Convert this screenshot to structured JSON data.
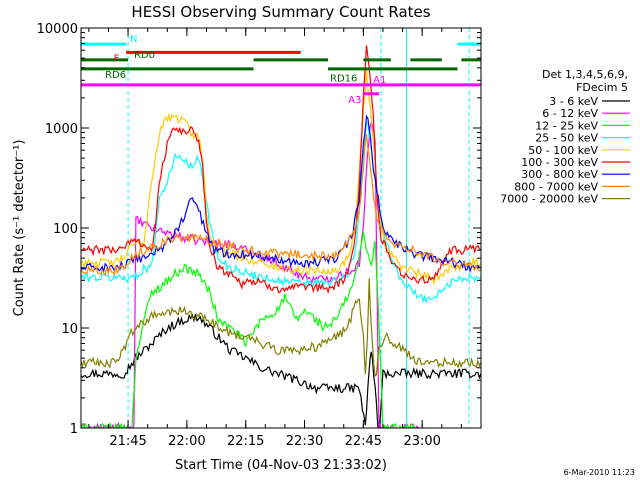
{
  "chart_data": {
    "type": "line",
    "title": "HESSI Observing Summary Count Rates",
    "xlabel": "Start Time (04-Nov-03 21:33:02)",
    "ylabel": "Count Rate (s⁻¹ detector⁻¹)",
    "x_unit": "minutes after 21:33:02",
    "xlim": [
      0,
      102
    ],
    "ylim": [
      1,
      10000
    ],
    "y_scale": "log",
    "x_ticks": [
      {
        "x": 12,
        "label": "21:45"
      },
      {
        "x": 27,
        "label": "22:00"
      },
      {
        "x": 42,
        "label": "22:15"
      },
      {
        "x": 57,
        "label": "22:30"
      },
      {
        "x": 72,
        "label": "22:45"
      },
      {
        "x": 87,
        "label": "23:00"
      }
    ],
    "y_ticks": [
      {
        "y": 1,
        "label": "1"
      },
      {
        "y": 10,
        "label": "10"
      },
      {
        "y": 100,
        "label": "100"
      },
      {
        "y": 1000,
        "label": "1000"
      },
      {
        "y": 10000,
        "label": "10000"
      }
    ],
    "legend_placement": "right",
    "legend_header": [
      "Det 1,3,4,5,6,9,",
      "FDecim 5"
    ],
    "series": [
      {
        "name": "3 - 6 keV",
        "color": "#000000",
        "x": [
          0,
          3,
          7,
          8.5,
          11,
          14,
          18,
          22,
          26,
          30,
          34,
          38,
          42,
          46,
          50,
          55,
          60,
          65,
          69,
          71,
          72.5,
          73.5,
          74,
          75,
          76,
          77,
          81,
          83,
          86,
          92,
          95,
          100,
          102
        ],
        "y": [
          3.5,
          3.5,
          3.5,
          3.5,
          3.5,
          5,
          7,
          10,
          12,
          13,
          9,
          6,
          5,
          4,
          3.5,
          3,
          2.5,
          2.5,
          2.5,
          2.5,
          1,
          4,
          6,
          2.5,
          0.8,
          3.5,
          3.5,
          3.5,
          3.5,
          3.5,
          3.5,
          3.5,
          3.5
        ]
      },
      {
        "name": "6 - 12 keV",
        "color": "#ff00ff",
        "x": [
          0,
          8.5,
          11,
          12.5,
          13.5,
          14,
          18,
          22,
          26,
          30,
          34,
          38,
          42,
          46,
          50,
          55,
          60,
          65,
          69,
          71,
          72,
          73,
          74,
          75,
          76,
          77,
          79,
          81,
          83,
          86
        ],
        "y": [
          1,
          1,
          1,
          1,
          1,
          120,
          100,
          90,
          80,
          75,
          72,
          68,
          60,
          52,
          45,
          35,
          30,
          33,
          38,
          45,
          100,
          500,
          1200,
          800,
          1,
          1,
          1,
          1,
          1,
          1
        ]
      },
      {
        "name": "12 - 25 keV",
        "color": "#00ff00",
        "x": [
          0,
          8.5,
          11,
          13,
          14,
          16,
          18,
          22,
          26,
          30,
          33,
          35,
          38,
          41,
          42,
          46,
          50,
          52,
          55,
          57,
          60,
          62,
          65,
          69,
          71,
          72,
          73,
          74,
          75,
          76,
          77,
          79,
          81,
          84,
          87
        ],
        "y": [
          1,
          1,
          1,
          1,
          5,
          12,
          22,
          30,
          40,
          35,
          22,
          12,
          10,
          8,
          7,
          12,
          15,
          20,
          12,
          15,
          12,
          10,
          12,
          25,
          50,
          90,
          60,
          40,
          80,
          10,
          1,
          1,
          1,
          1,
          1
        ]
      },
      {
        "name": "25 - 50 keV",
        "color": "#00ffff",
        "x": [
          0,
          8.5,
          11,
          14,
          16,
          18,
          20,
          22,
          24,
          26,
          28,
          30,
          32,
          33,
          35,
          38,
          41,
          42,
          50,
          55,
          60,
          63,
          66,
          68,
          70,
          71,
          72,
          72.8,
          73.5,
          74.5,
          76,
          78,
          80,
          82,
          86,
          90,
          96,
          100,
          102
        ],
        "y": [
          32,
          32,
          32,
          32,
          40,
          40,
          200,
          300,
          500,
          500,
          400,
          500,
          200,
          100,
          50,
          40,
          38,
          35,
          30,
          28,
          28,
          28,
          30,
          35,
          60,
          150,
          600,
          1200,
          900,
          400,
          150,
          70,
          40,
          30,
          20,
          20,
          32,
          32,
          32
        ]
      },
      {
        "name": "50 - 100 keV",
        "color": "#ffcc00",
        "x": [
          0,
          8.5,
          11,
          12,
          14,
          16,
          18,
          20,
          22,
          24,
          26,
          28,
          30,
          31,
          32,
          33,
          35,
          38,
          41,
          42,
          46,
          50,
          55,
          60,
          63,
          66,
          68,
          70,
          71,
          72,
          72.8,
          73.5,
          74.5,
          75.5,
          76.5,
          78,
          80,
          82,
          86,
          90,
          94,
          100,
          102
        ],
        "y": [
          45,
          45,
          50,
          60,
          70,
          70,
          300,
          900,
          1300,
          1200,
          1300,
          900,
          800,
          500,
          150,
          80,
          60,
          55,
          50,
          50,
          45,
          40,
          38,
          38,
          38,
          40,
          50,
          100,
          400,
          1500,
          3500,
          2000,
          800,
          200,
          100,
          60,
          50,
          40,
          35,
          30,
          40,
          45,
          45
        ]
      },
      {
        "name": "100 - 300 keV",
        "color": "#ff0000",
        "x": [
          0,
          8.5,
          11,
          12,
          14,
          16,
          18,
          19,
          20,
          22,
          24,
          26,
          28,
          30,
          31,
          32,
          33,
          35,
          38,
          41,
          42,
          46,
          50,
          55,
          60,
          63,
          66,
          68,
          70,
          71,
          72,
          72.8,
          73.5,
          74.5,
          75.5,
          76.5,
          78,
          80,
          82,
          86,
          90,
          94,
          100,
          102
        ],
        "y": [
          60,
          60,
          65,
          70,
          75,
          70,
          60,
          100,
          300,
          700,
          1000,
          900,
          1000,
          700,
          400,
          120,
          60,
          40,
          35,
          28,
          30,
          28,
          25,
          25,
          25,
          25,
          28,
          35,
          80,
          300,
          2000,
          6500,
          4000,
          1500,
          200,
          80,
          60,
          40,
          35,
          30,
          30,
          60,
          60,
          60
        ]
      },
      {
        "name": "300 - 800 keV",
        "color": "#0000ff",
        "x": [
          0,
          8.5,
          11,
          14,
          18,
          22,
          26,
          28,
          30,
          32,
          34,
          38,
          42,
          46,
          50,
          55,
          60,
          65,
          69,
          71,
          72,
          72.8,
          73.5,
          75,
          77,
          80,
          85,
          90,
          95,
          100,
          102
        ],
        "y": [
          40,
          40,
          42,
          48,
          55,
          70,
          120,
          200,
          150,
          90,
          60,
          55,
          55,
          52,
          50,
          45,
          45,
          50,
          80,
          200,
          700,
          1400,
          1000,
          300,
          100,
          70,
          55,
          50,
          45,
          40,
          40
        ]
      },
      {
        "name": "800 - 7000 keV",
        "color": "#ff8800",
        "x": [
          0,
          8.5,
          11,
          14,
          18,
          22,
          26,
          30,
          34,
          38,
          42,
          46,
          50,
          55,
          60,
          65,
          69,
          71,
          72,
          72.8,
          73.5,
          75,
          77,
          80,
          85,
          90,
          95,
          100,
          102
        ],
        "y": [
          38,
          38,
          42,
          55,
          65,
          75,
          80,
          78,
          72,
          65,
          60,
          58,
          55,
          55,
          52,
          55,
          80,
          150,
          400,
          900,
          500,
          150,
          90,
          70,
          60,
          50,
          45,
          40,
          38
        ]
      },
      {
        "name": "7000 - 20000 keV",
        "color": "#808000",
        "x": [
          0,
          5,
          8.5,
          11,
          12,
          14,
          18,
          22,
          26,
          30,
          34,
          38,
          42,
          46,
          50,
          55,
          60,
          65,
          68,
          70,
          71,
          72,
          72.5,
          73,
          73.5,
          74,
          75,
          76,
          78,
          80,
          82,
          86,
          90,
          95,
          100,
          102
        ],
        "y": [
          4.5,
          4.5,
          4.5,
          6,
          8,
          10,
          13,
          14,
          15,
          13,
          11,
          9,
          8,
          7,
          6,
          6,
          6.5,
          8,
          10,
          18,
          20,
          8,
          3.5,
          8,
          30,
          10,
          3,
          6,
          8,
          7,
          6,
          4.5,
          4.5,
          4.5,
          4.5,
          4.5
        ]
      }
    ],
    "state_bars": [
      {
        "label": "N",
        "color": "#00ffff",
        "x1": 0,
        "x2": 102,
        "y": 6900,
        "segments": [
          [
            0,
            11.5
          ],
          [
            96,
            102
          ]
        ]
      },
      {
        "label": "F",
        "color": "#ff0000",
        "x1": 11.5,
        "x2": 56,
        "y": 5700,
        "segments": [
          [
            11.5,
            56
          ]
        ]
      },
      {
        "label": "RD0",
        "color": "#006600",
        "x1": 0,
        "x2": 102,
        "y": 4800,
        "segments": [
          [
            0,
            12
          ],
          [
            44,
            63
          ],
          [
            72,
            79
          ],
          [
            84,
            92
          ],
          [
            97,
            102
          ]
        ]
      },
      {
        "label": "RD6",
        "color": "#006600",
        "x1": 0,
        "x2": 102,
        "y": 3900,
        "segments": [
          [
            0,
            12
          ],
          [
            12,
            44
          ],
          [
            63,
            96
          ]
        ]
      },
      {
        "label": "RD16",
        "color": "#006600",
        "x1": 63,
        "x2": 95,
        "y": 3600,
        "segments": []
      },
      {
        "label": "A1",
        "color": "#ff00ff",
        "x1": 0,
        "x2": 102,
        "y": 2700,
        "segments": [
          [
            0,
            102
          ]
        ]
      },
      {
        "label": "A3",
        "color": "#ff00ff",
        "x1": 72,
        "x2": 76,
        "y": 2200,
        "segments": [
          [
            72,
            76
          ]
        ]
      }
    ],
    "vertical_markers": [
      {
        "x": 0,
        "style": "solid",
        "color": "#00ffff"
      },
      {
        "x": 12,
        "style": "dashed",
        "color": "#00ffff"
      },
      {
        "x": 76.5,
        "style": "dashed",
        "color": "#00ffff"
      },
      {
        "x": 83,
        "style": "solid",
        "color": "#00ffff"
      },
      {
        "x": 99,
        "style": "dashed",
        "color": "#00ffff"
      }
    ]
  },
  "footer": {
    "timestamp": "6-Mar-2010 11:23"
  }
}
